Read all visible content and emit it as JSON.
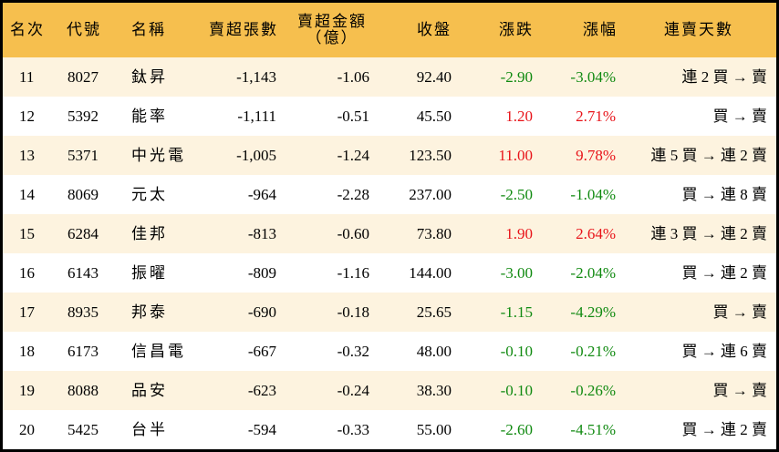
{
  "table": {
    "header_bg": "#F6BF4E",
    "alt_row_bg": "#FDF3DF",
    "up_color": "#E8141A",
    "down_color": "#118A11",
    "columns": [
      "名次",
      "代號",
      "名稱",
      "賣超張數",
      "賣超金額",
      "（億）",
      "收盤",
      "漲跌",
      "漲幅",
      "連賣天數"
    ],
    "rows": [
      {
        "rank": "11",
        "code": "8027",
        "name": "鈦昇",
        "net_sell_lots": "-1,143",
        "net_sell_amount": "-1.06",
        "close": "92.40",
        "change": "-2.90",
        "pct": "-3.04%",
        "streak": "連 2 買 → 賣",
        "dir": "dn"
      },
      {
        "rank": "12",
        "code": "5392",
        "name": "能率",
        "net_sell_lots": "-1,111",
        "net_sell_amount": "-0.51",
        "close": "45.50",
        "change": "1.20",
        "pct": "2.71%",
        "streak": "買 → 賣",
        "dir": "up"
      },
      {
        "rank": "13",
        "code": "5371",
        "name": "中光電",
        "net_sell_lots": "-1,005",
        "net_sell_amount": "-1.24",
        "close": "123.50",
        "change": "11.00",
        "pct": "9.78%",
        "streak": "連 5 買 → 連 2 賣",
        "dir": "up"
      },
      {
        "rank": "14",
        "code": "8069",
        "name": "元太",
        "net_sell_lots": "-964",
        "net_sell_amount": "-2.28",
        "close": "237.00",
        "change": "-2.50",
        "pct": "-1.04%",
        "streak": "買 → 連 8 賣",
        "dir": "dn"
      },
      {
        "rank": "15",
        "code": "6284",
        "name": "佳邦",
        "net_sell_lots": "-813",
        "net_sell_amount": "-0.60",
        "close": "73.80",
        "change": "1.90",
        "pct": "2.64%",
        "streak": "連 3 買 → 連 2 賣",
        "dir": "up"
      },
      {
        "rank": "16",
        "code": "6143",
        "name": "振曜",
        "net_sell_lots": "-809",
        "net_sell_amount": "-1.16",
        "close": "144.00",
        "change": "-3.00",
        "pct": "-2.04%",
        "streak": "買 → 連 2 賣",
        "dir": "dn"
      },
      {
        "rank": "17",
        "code": "8935",
        "name": "邦泰",
        "net_sell_lots": "-690",
        "net_sell_amount": "-0.18",
        "close": "25.65",
        "change": "-1.15",
        "pct": "-4.29%",
        "streak": "買 → 賣",
        "dir": "dn"
      },
      {
        "rank": "18",
        "code": "6173",
        "name": "信昌電",
        "net_sell_lots": "-667",
        "net_sell_amount": "-0.32",
        "close": "48.00",
        "change": "-0.10",
        "pct": "-0.21%",
        "streak": "買 → 連 6 賣",
        "dir": "dn"
      },
      {
        "rank": "19",
        "code": "8088",
        "name": "品安",
        "net_sell_lots": "-623",
        "net_sell_amount": "-0.24",
        "close": "38.30",
        "change": "-0.10",
        "pct": "-0.26%",
        "streak": "買 → 賣",
        "dir": "dn"
      },
      {
        "rank": "20",
        "code": "5425",
        "name": "台半",
        "net_sell_lots": "-594",
        "net_sell_amount": "-0.33",
        "close": "55.00",
        "change": "-2.60",
        "pct": "-4.51%",
        "streak": "買 → 連 2 賣",
        "dir": "dn"
      }
    ]
  }
}
